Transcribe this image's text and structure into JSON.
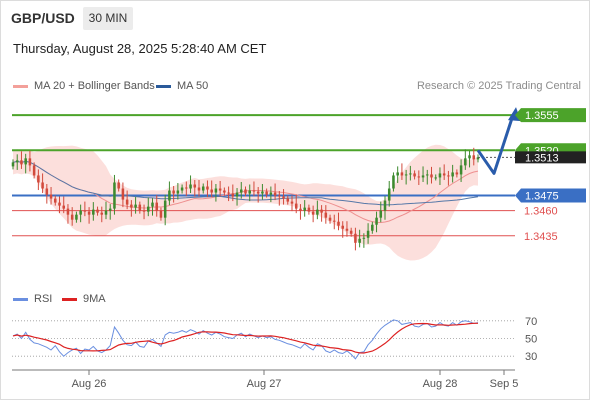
{
  "header": {
    "symbol": "GBP/USD",
    "timeframe": "30 MIN",
    "datetime": "Thursday, August 28, 2025 5:28:40 AM CET",
    "credit": "Research © 2025 Trading Central"
  },
  "legend": {
    "ma20_label": "MA 20 + Bollinger Bands",
    "ma50_label": "MA 50",
    "rsi_label": "RSI",
    "ma9_label": "9MA"
  },
  "colors": {
    "resistance": "#4ca32a",
    "pivot": "#3a6fc4",
    "support": "#e05050",
    "bollinger": "#fbd9d6",
    "ma20": "#ee9090",
    "ma50": "#5578a8",
    "candle_up": "#3d8a2e",
    "candle_down": "#d24a3c",
    "rsi": "#6a8fe0",
    "rsi_ma": "#dd2222",
    "arrow": "#2a5cab"
  },
  "chart_data": [
    {
      "type": "candlestick",
      "x_labels": [
        "Aug 26",
        "Aug 27",
        "Aug 28",
        "Sep 5"
      ],
      "ylim": [
        1.3395,
        1.3575
      ],
      "current_price_label": "1.3513",
      "levels": [
        {
          "label": "1.3555",
          "value": 1.3555,
          "kind": "resistance"
        },
        {
          "label": "1.3520",
          "value": 1.352,
          "kind": "resistance"
        },
        {
          "label": "1.3475",
          "value": 1.3475,
          "kind": "pivot"
        },
        {
          "label": "1.3460",
          "value": 1.346,
          "kind": "support"
        },
        {
          "label": "1.3435",
          "value": 1.3435,
          "kind": "support"
        }
      ],
      "forecast_path": [
        1.352,
        1.3497,
        1.3555
      ],
      "close": [
        1.3508,
        1.351,
        1.3506,
        1.3512,
        1.3505,
        1.3495,
        1.3488,
        1.3482,
        1.3476,
        1.3472,
        1.3468,
        1.3465,
        1.3462,
        1.3456,
        1.3451,
        1.3456,
        1.346,
        1.3459,
        1.3456,
        1.3461,
        1.3458,
        1.3456,
        1.346,
        1.3462,
        1.3488,
        1.3482,
        1.3471,
        1.3466,
        1.3463,
        1.3466,
        1.346,
        1.3459,
        1.3464,
        1.3468,
        1.346,
        1.3453,
        1.347,
        1.348,
        1.3477,
        1.348,
        1.3483,
        1.3482,
        1.3486,
        1.3483,
        1.348,
        1.3484,
        1.3481,
        1.3478,
        1.3482,
        1.348,
        1.3478,
        1.3477,
        1.3474,
        1.3478,
        1.3481,
        1.3477,
        1.348,
        1.3479,
        1.3477,
        1.3479,
        1.3476,
        1.3478,
        1.3475,
        1.3474,
        1.3472,
        1.3469,
        1.3467,
        1.3462,
        1.346,
        1.3463,
        1.3459,
        1.3456,
        1.3461,
        1.3458,
        1.3453,
        1.345,
        1.3449,
        1.3445,
        1.3442,
        1.344,
        1.3437,
        1.3428,
        1.3432,
        1.3433,
        1.344,
        1.3446,
        1.3453,
        1.346,
        1.347,
        1.3482,
        1.3495,
        1.3498,
        1.3495,
        1.3496,
        1.3497,
        1.3494,
        1.3493,
        1.3495,
        1.3496,
        1.3493,
        1.3493,
        1.3497,
        1.3495,
        1.3494,
        1.3498,
        1.3496,
        1.3505,
        1.3512,
        1.3515,
        1.3511,
        1.3513
      ]
    },
    {
      "type": "line",
      "name": "RSI",
      "ylim": [
        20,
        80
      ],
      "ticks": [
        70,
        50,
        30
      ],
      "ma_name": "9MA",
      "values": [
        53,
        55,
        50,
        57,
        49,
        45,
        44,
        42,
        40,
        37,
        42,
        35,
        30,
        34,
        37,
        39,
        33,
        38,
        37,
        41,
        36,
        34,
        37,
        42,
        63,
        56,
        48,
        43,
        42,
        46,
        41,
        40,
        47,
        49,
        45,
        41,
        54,
        57,
        56,
        57,
        59,
        57,
        60,
        58,
        55,
        59,
        56,
        54,
        57,
        55,
        52,
        51,
        50,
        54,
        56,
        52,
        55,
        53,
        51,
        53,
        51,
        52,
        49,
        48,
        46,
        44,
        43,
        41,
        39,
        44,
        40,
        37,
        44,
        42,
        36,
        34,
        37,
        34,
        33,
        36,
        32,
        27,
        34,
        35,
        43,
        48,
        55,
        61,
        65,
        68,
        71,
        70,
        66,
        67,
        68,
        64,
        63,
        66,
        67,
        63,
        64,
        68,
        65,
        64,
        68,
        65,
        69,
        70,
        69,
        67,
        68
      ]
    }
  ]
}
